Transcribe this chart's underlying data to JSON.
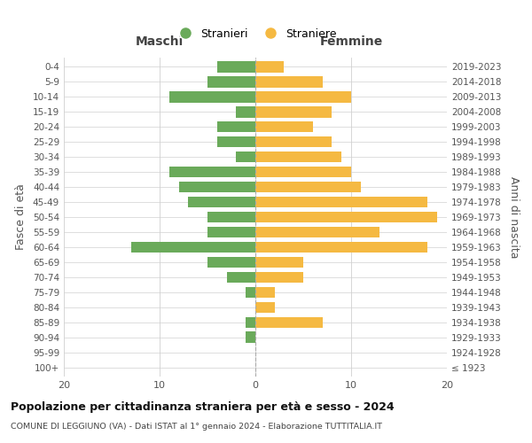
{
  "age_groups": [
    "100+",
    "95-99",
    "90-94",
    "85-89",
    "80-84",
    "75-79",
    "70-74",
    "65-69",
    "60-64",
    "55-59",
    "50-54",
    "45-49",
    "40-44",
    "35-39",
    "30-34",
    "25-29",
    "20-24",
    "15-19",
    "10-14",
    "5-9",
    "0-4"
  ],
  "birth_years": [
    "≤ 1923",
    "1924-1928",
    "1929-1933",
    "1934-1938",
    "1939-1943",
    "1944-1948",
    "1949-1953",
    "1954-1958",
    "1959-1963",
    "1964-1968",
    "1969-1973",
    "1974-1978",
    "1979-1983",
    "1984-1988",
    "1989-1993",
    "1994-1998",
    "1999-2003",
    "2004-2008",
    "2009-2013",
    "2014-2018",
    "2019-2023"
  ],
  "maschi": [
    0,
    0,
    1,
    1,
    0,
    1,
    3,
    5,
    13,
    5,
    5,
    7,
    8,
    9,
    2,
    4,
    4,
    2,
    9,
    5,
    4
  ],
  "femmine": [
    0,
    0,
    0,
    7,
    2,
    2,
    5,
    5,
    18,
    13,
    19,
    18,
    11,
    10,
    9,
    8,
    6,
    8,
    10,
    7,
    3
  ],
  "maschi_color": "#6aaa5a",
  "femmine_color": "#f5b942",
  "title": "Popolazione per cittadinanza straniera per età e sesso - 2024",
  "subtitle": "COMUNE DI LEGGIUNO (VA) - Dati ISTAT al 1° gennaio 2024 - Elaborazione TUTTITALIA.IT",
  "xlabel_left": "Maschi",
  "xlabel_right": "Femmine",
  "ylabel_left": "Fasce di età",
  "ylabel_right": "Anni di nascita",
  "legend_stranieri": "Stranieri",
  "legend_straniere": "Straniere",
  "xlim": 20,
  "background_color": "#ffffff",
  "grid_color": "#d0d0d0",
  "bar_height": 0.75
}
